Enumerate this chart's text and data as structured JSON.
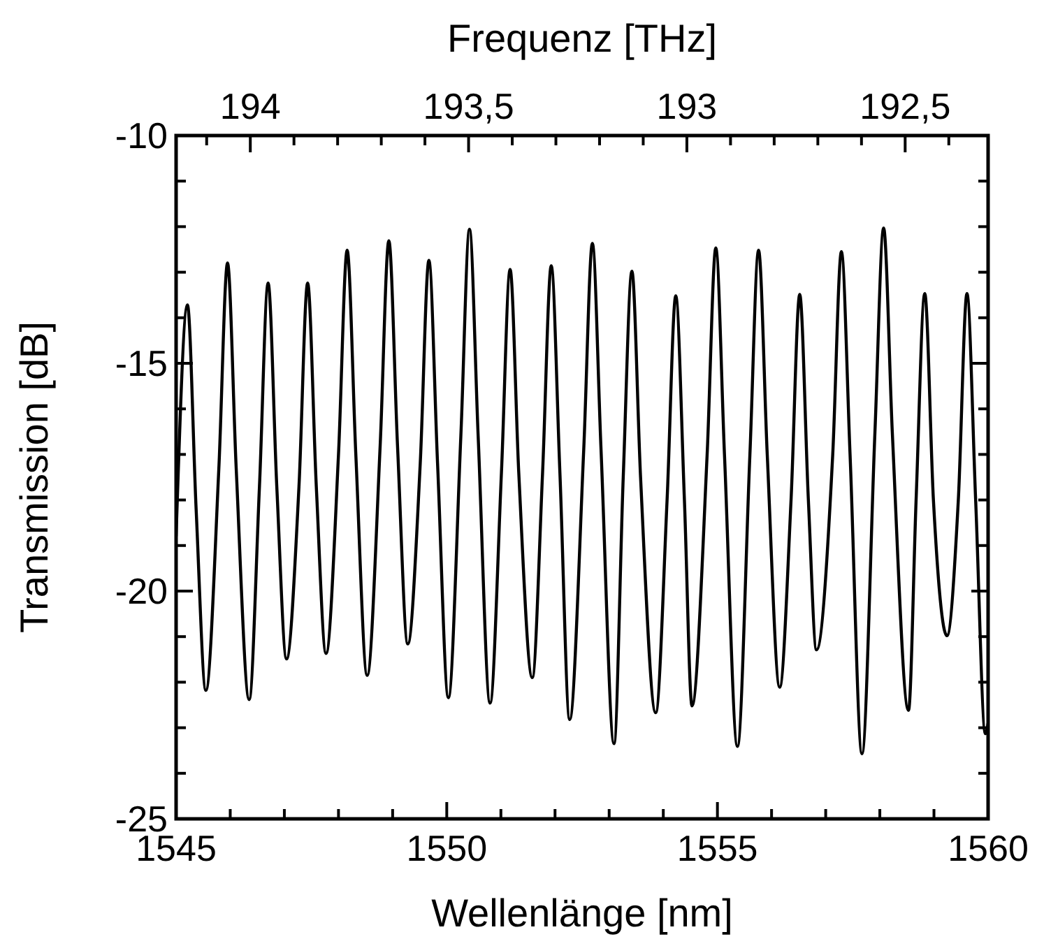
{
  "chart_data": {
    "type": "line",
    "xlabel": "Wellenlänge [nm]",
    "ylabel": "Transmission [dB]",
    "x2label": "Frequenz [THz]",
    "xlim": [
      1545,
      1560
    ],
    "ylim": [
      -25,
      -10
    ],
    "xticks": [
      1545,
      {
        "value": 1546,
        "label": null
      },
      {
        "value": 1547,
        "label": null
      },
      {
        "value": 1548,
        "label": null
      },
      {
        "value": 1549,
        "label": null
      },
      1550,
      {
        "value": 1551,
        "label": null
      },
      {
        "value": 1552,
        "label": null
      },
      {
        "value": 1553,
        "label": null
      },
      {
        "value": 1554,
        "label": null
      },
      1555,
      {
        "value": 1556,
        "label": null
      },
      {
        "value": 1557,
        "label": null
      },
      {
        "value": 1558,
        "label": null
      },
      {
        "value": 1559,
        "label": null
      },
      1560
    ],
    "yticks": [
      -25,
      {
        "value": -24,
        "label": null
      },
      {
        "value": -23,
        "label": null
      },
      {
        "value": -22,
        "label": null
      },
      {
        "value": -21,
        "label": null
      },
      -20,
      {
        "value": -19,
        "label": null
      },
      {
        "value": -18,
        "label": null
      },
      {
        "value": -17,
        "label": null
      },
      {
        "value": -16,
        "label": null
      },
      -15,
      {
        "value": -14,
        "label": null
      },
      {
        "value": -13,
        "label": null
      },
      {
        "value": -12,
        "label": null
      },
      {
        "value": -11,
        "label": null
      },
      -10
    ],
    "x2lim": [
      194.17,
      192.31
    ],
    "x2ticks": [
      {
        "value": 194.1,
        "label": null
      },
      {
        "value": 194,
        "label": "194"
      },
      {
        "value": 193.9,
        "label": null
      },
      {
        "value": 193.8,
        "label": null
      },
      {
        "value": 193.7,
        "label": null
      },
      {
        "value": 193.6,
        "label": null
      },
      {
        "value": 193.5,
        "label": "193,5"
      },
      {
        "value": 193.4,
        "label": null
      },
      {
        "value": 193.3,
        "label": null
      },
      {
        "value": 193.2,
        "label": null
      },
      {
        "value": 193.1,
        "label": null
      },
      {
        "value": 193,
        "label": "193"
      },
      {
        "value": 192.9,
        "label": null
      },
      {
        "value": 192.8,
        "label": null
      },
      {
        "value": 192.7,
        "label": null
      },
      {
        "value": 192.6,
        "label": null
      },
      {
        "value": 192.5,
        "label": "192,5"
      },
      {
        "value": 192.4,
        "label": null
      }
    ],
    "grid": false,
    "marker": "none",
    "line_style": "solid",
    "series": [
      {
        "color": "#000000",
        "x": [
          1545.0,
          1545.21,
          1545.37,
          1545.55,
          1545.79,
          1545.95,
          1546.11,
          1546.35,
          1546.54,
          1546.7,
          1546.86,
          1547.04,
          1547.27,
          1547.43,
          1547.59,
          1547.77,
          1548.0,
          1548.16,
          1548.32,
          1548.53,
          1548.77,
          1548.93,
          1549.09,
          1549.28,
          1549.51,
          1549.67,
          1549.83,
          1550.03,
          1550.26,
          1550.42,
          1550.58,
          1550.8,
          1551.01,
          1551.17,
          1551.33,
          1551.58,
          1551.77,
          1551.93,
          1552.09,
          1552.27,
          1552.53,
          1552.69,
          1552.85,
          1553.09,
          1553.26,
          1553.42,
          1553.58,
          1553.86,
          1554.07,
          1554.23,
          1554.39,
          1554.53,
          1554.81,
          1554.97,
          1555.13,
          1555.37,
          1555.6,
          1555.76,
          1555.92,
          1556.15,
          1556.36,
          1556.52,
          1556.68,
          1556.83,
          1557.13,
          1557.29,
          1557.45,
          1557.67,
          1557.91,
          1558.07,
          1558.23,
          1558.53,
          1558.67,
          1558.83,
          1558.99,
          1559.24,
          1559.45,
          1559.61,
          1559.77,
          1559.95,
          1560.0
        ],
        "values": [
          -18.8,
          -13.72,
          -18.2,
          -22.18,
          -17.3,
          -12.8,
          -17.3,
          -22.38,
          -17.7,
          -13.24,
          -17.7,
          -21.49,
          -17.7,
          -13.24,
          -17.7,
          -21.37,
          -17.0,
          -12.52,
          -17.0,
          -21.85,
          -16.8,
          -12.31,
          -16.8,
          -21.16,
          -17.2,
          -12.74,
          -17.2,
          -22.34,
          -16.6,
          -12.06,
          -16.6,
          -22.46,
          -17.4,
          -12.94,
          -17.4,
          -21.9,
          -17.4,
          -12.86,
          -17.4,
          -22.82,
          -16.9,
          -12.37,
          -16.9,
          -23.35,
          -17.5,
          -12.98,
          -17.5,
          -22.67,
          -18.0,
          -13.52,
          -18.0,
          -22.52,
          -17.0,
          -12.47,
          -17.0,
          -23.41,
          -17.0,
          -12.52,
          -17.0,
          -22.11,
          -18.0,
          -13.49,
          -18.0,
          -21.29,
          -17.0,
          -12.55,
          -17.0,
          -23.57,
          -16.5,
          -12.03,
          -16.5,
          -22.62,
          -18.0,
          -13.47,
          -18.0,
          -20.98,
          -18.0,
          -13.47,
          -18.0,
          -23.13,
          -22.9
        ]
      }
    ]
  }
}
